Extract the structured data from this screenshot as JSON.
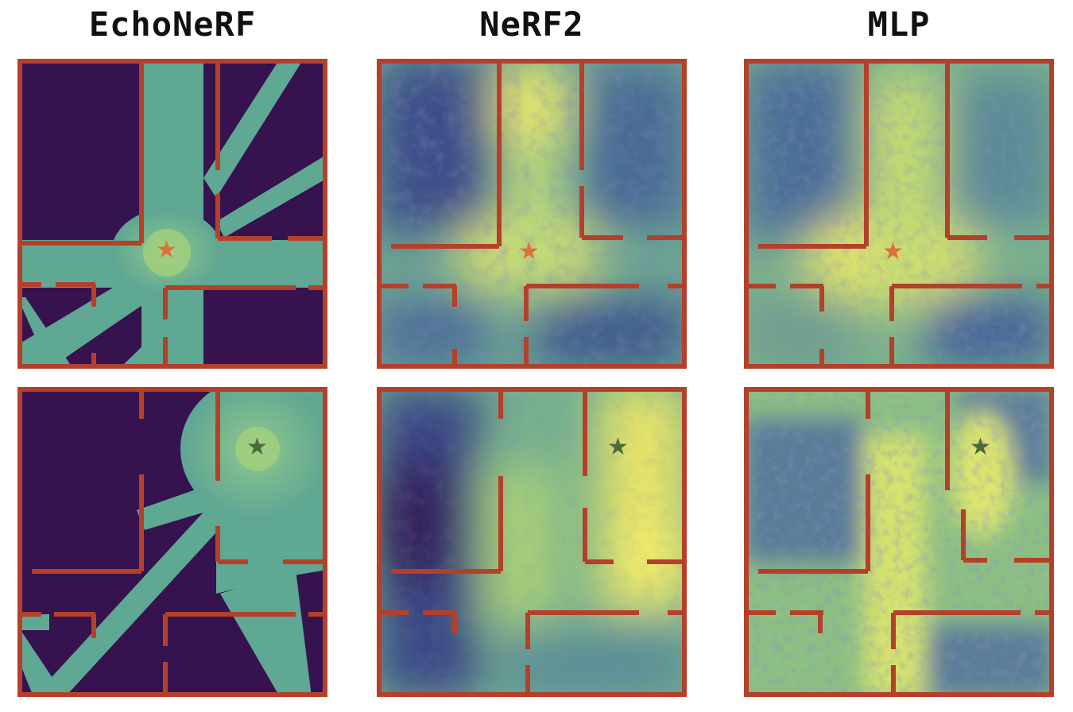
{
  "columns": [
    {
      "id": "echonerf",
      "title": "EchoNeRF"
    },
    {
      "id": "nerf2",
      "title": "NeRF2"
    },
    {
      "id": "mlp",
      "title": "MLP"
    }
  ],
  "colors": {
    "wall": "#b5402a",
    "dark_bg": "#36124f",
    "teal": "#4f9a8e",
    "teal_light": "#77b89c",
    "yellow": "#eae763",
    "star_row1": "#e0703a",
    "star_row2": "#4e6a3a"
  },
  "rows": [
    {
      "id": "row-1",
      "transmitter_marker": "star",
      "star_color": "#e0703a"
    },
    {
      "id": "row-2",
      "transmitter_marker": "star",
      "star_color": "#4e6a3a"
    }
  ]
}
